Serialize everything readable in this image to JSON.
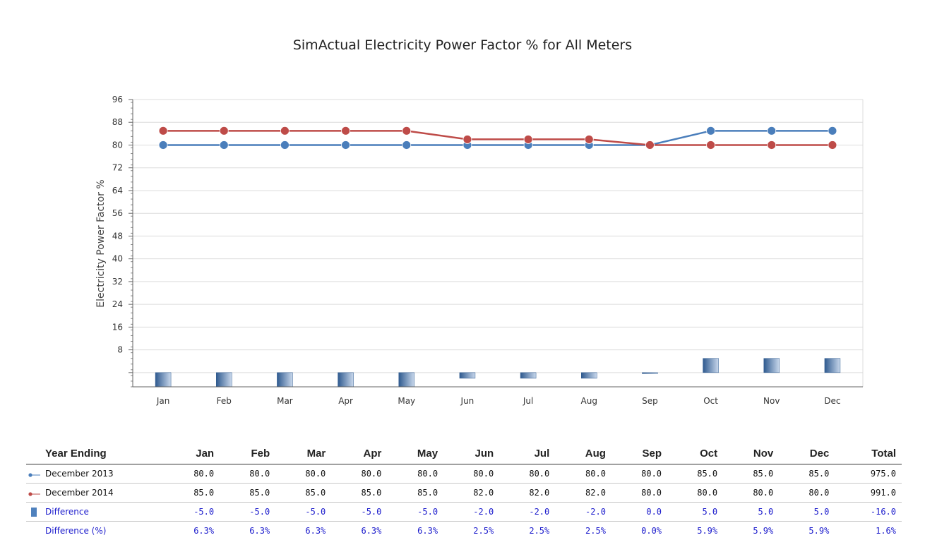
{
  "chart_data": {
    "type": "line",
    "title": "SimActual Electricity Power Factor % for All Meters",
    "ylabel": "Electricity Power Factor %",
    "xlabel": "",
    "categories": [
      "Jan",
      "Feb",
      "Mar",
      "Apr",
      "May",
      "Jun",
      "Jul",
      "Aug",
      "Sep",
      "Oct",
      "Nov",
      "Dec"
    ],
    "ylim": [
      -5,
      96
    ],
    "yticks": [
      8,
      16,
      24,
      32,
      40,
      48,
      56,
      64,
      72,
      80,
      88,
      96
    ],
    "grid": true,
    "series": [
      {
        "name": "December 2013",
        "kind": "line",
        "color": "#4a7ebb",
        "values": [
          80,
          80,
          80,
          80,
          80,
          80,
          80,
          80,
          80,
          85,
          85,
          85
        ]
      },
      {
        "name": "December 2014",
        "kind": "line",
        "color": "#be4b48",
        "values": [
          85,
          85,
          85,
          85,
          85,
          82,
          82,
          82,
          80,
          80,
          80,
          80
        ]
      },
      {
        "name": "Difference",
        "kind": "bar",
        "color": "#4f81bd",
        "values": [
          -5,
          -5,
          -5,
          -5,
          -5,
          -2,
          -2,
          -2,
          0,
          5,
          5,
          5
        ]
      }
    ]
  },
  "table": {
    "header": [
      "Year Ending",
      "Jan",
      "Feb",
      "Mar",
      "Apr",
      "May",
      "Jun",
      "Jul",
      "Aug",
      "Sep",
      "Oct",
      "Nov",
      "Dec",
      "Total"
    ],
    "rows": [
      {
        "label": "December 2013",
        "marker": "line-blue",
        "style": "dark",
        "cells": [
          "80.0",
          "80.0",
          "80.0",
          "80.0",
          "80.0",
          "80.0",
          "80.0",
          "80.0",
          "80.0",
          "85.0",
          "85.0",
          "85.0",
          "975.0"
        ]
      },
      {
        "label": "December 2014",
        "marker": "line-red",
        "style": "dark",
        "cells": [
          "85.0",
          "85.0",
          "85.0",
          "85.0",
          "85.0",
          "82.0",
          "82.0",
          "82.0",
          "80.0",
          "80.0",
          "80.0",
          "80.0",
          "991.0"
        ]
      },
      {
        "label": "Difference",
        "marker": "bar",
        "style": "blue",
        "cells": [
          "-5.0",
          "-5.0",
          "-5.0",
          "-5.0",
          "-5.0",
          "-2.0",
          "-2.0",
          "-2.0",
          "0.0",
          "5.0",
          "5.0",
          "5.0",
          "-16.0"
        ]
      },
      {
        "label": "Difference (%)",
        "marker": "none",
        "style": "blue",
        "cells": [
          "6.3%",
          "6.3%",
          "6.3%",
          "6.3%",
          "6.3%",
          "2.5%",
          "2.5%",
          "2.5%",
          "0.0%",
          "5.9%",
          "5.9%",
          "5.9%",
          "1.6%"
        ]
      }
    ]
  }
}
